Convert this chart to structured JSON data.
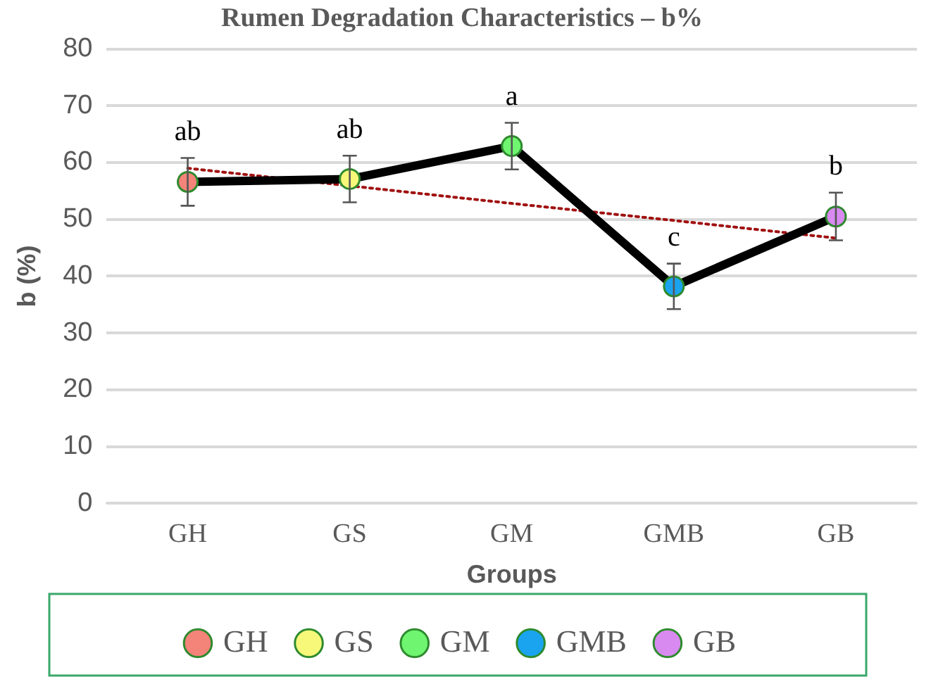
{
  "chart_data": {
    "type": "line",
    "title": "Rumen Degradation Characteristics – b%",
    "xlabel": "Groups",
    "ylabel": "b (%)",
    "categories": [
      "GH",
      "GS",
      "GM",
      "GMB",
      "GB"
    ],
    "series": [
      {
        "color": "#000000",
        "marker": "none",
        "values": [
          56.6,
          57.1,
          62.9,
          38.2,
          50.5
        ],
        "errors": [
          4.2,
          4.1,
          4.1,
          4.0,
          4.2
        ]
      },
      {
        "color": "#a01010",
        "line_style": "dotted",
        "marker": "none",
        "values": [
          59.0,
          55.9,
          52.8,
          49.8,
          46.7
        ]
      },
      {
        "name": "GH",
        "color": "#f4837a",
        "values": [
          56.6,
          null,
          null,
          null,
          null
        ]
      },
      {
        "name": "GS",
        "color": "#f7f77a",
        "values": [
          null,
          57.1,
          null,
          null,
          null
        ]
      },
      {
        "name": "GM",
        "color": "#6ff56f",
        "values": [
          null,
          null,
          62.9,
          null,
          null
        ]
      },
      {
        "name": "GMB",
        "color": "#1aa3ef",
        "values": [
          null,
          null,
          null,
          38.2,
          null
        ]
      },
      {
        "name": "GB",
        "color": "#d98af0",
        "values": [
          null,
          null,
          null,
          null,
          50.5
        ]
      }
    ],
    "annotations": [
      "ab",
      "ab",
      "a",
      "c",
      "b"
    ],
    "ylim": [
      0,
      80
    ],
    "yticks": [
      0,
      10,
      20,
      30,
      40,
      50,
      60,
      70,
      80
    ],
    "grid": "y",
    "legend": "bottom",
    "marker": "circle"
  }
}
